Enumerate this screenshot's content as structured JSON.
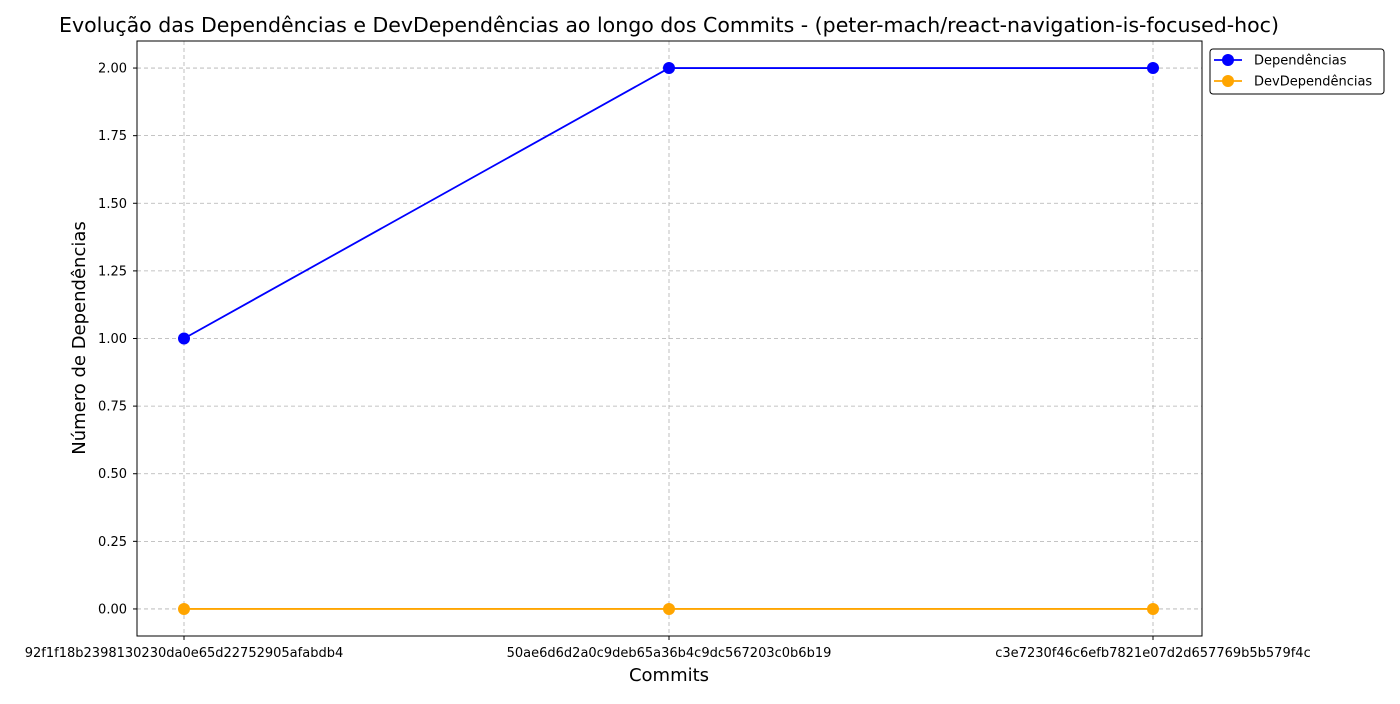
{
  "chart_data": {
    "type": "line",
    "title": "Evolução das Dependências e DevDependências ao longo dos Commits - (peter-mach/react-navigation-is-focused-hoc)",
    "xlabel": "Commits",
    "ylabel": "Número de Dependências",
    "categories": [
      "92f1f18b2398130230da0e65d22752905afabdb4",
      "50ae6d6d2a0c9deb65a36b4c9dc567203c0b6b19",
      "c3e7230f46c6efb7821e07d2d657769b5b579f4c"
    ],
    "series": [
      {
        "name": "Dependências",
        "values": [
          1,
          2,
          2
        ],
        "color": "#0000ff"
      },
      {
        "name": "DevDependências",
        "values": [
          0,
          0,
          0
        ],
        "color": "#ffa500"
      }
    ],
    "ylim": [
      -0.1,
      2.1
    ],
    "yticks": [
      "0.00",
      "0.25",
      "0.50",
      "0.75",
      "1.00",
      "1.25",
      "1.50",
      "1.75",
      "2.00"
    ],
    "grid": true,
    "legend_position": "upper-right-outside"
  }
}
